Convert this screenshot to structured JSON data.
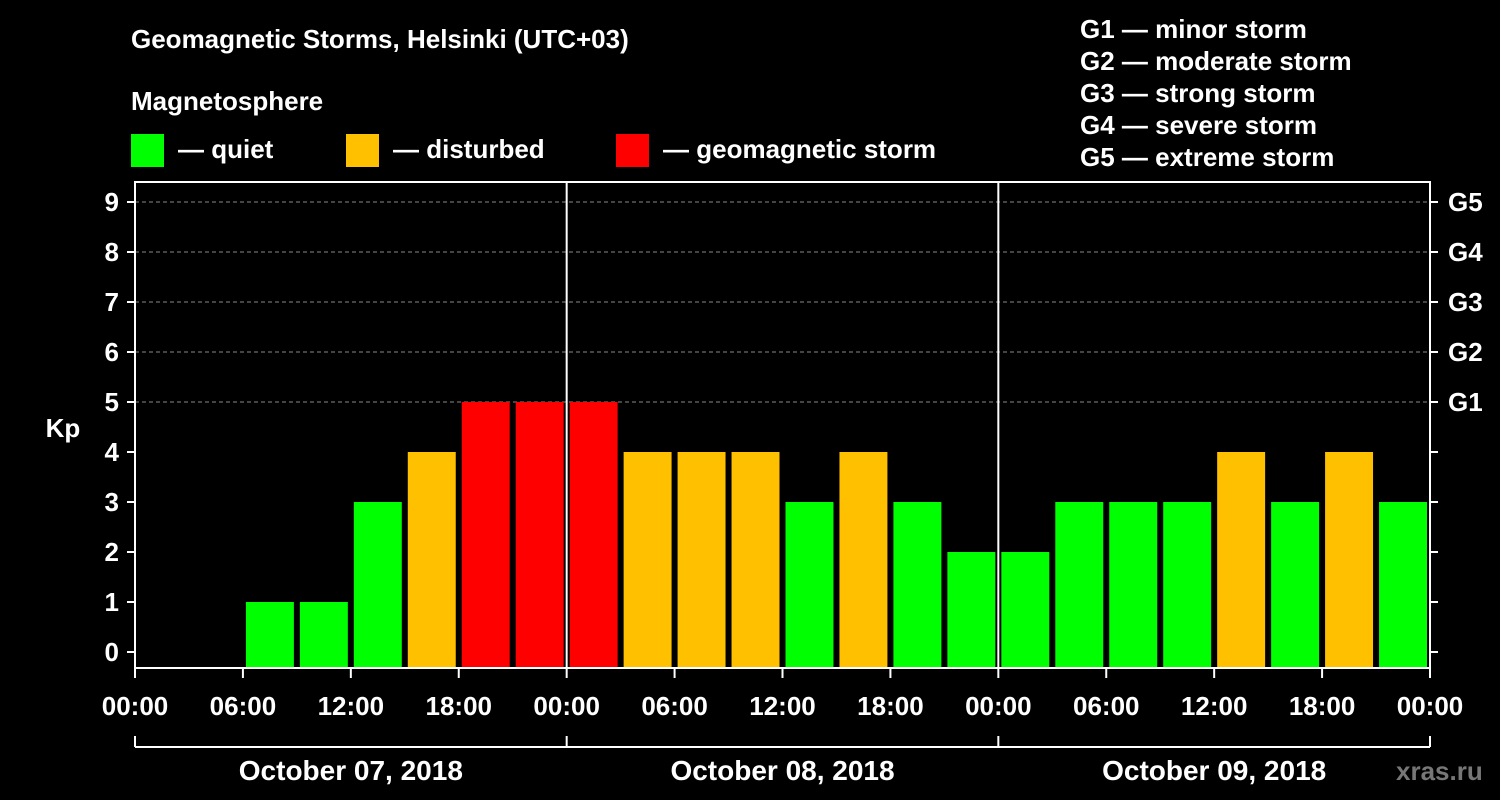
{
  "header": {
    "title": "Geomagnetic Storms, Helsinki (UTC+03)",
    "subtitle": "Magnetosphere",
    "legend": [
      {
        "label": "— quiet",
        "color": "#00ff00"
      },
      {
        "label": "— disturbed",
        "color": "#ffc000"
      },
      {
        "label": "— geomagnetic storm",
        "color": "#ff0000"
      }
    ],
    "scale_legend": [
      "G1 — minor storm",
      "G2 — moderate storm",
      "G3 — strong storm",
      "G4 — severe storm",
      "G5 — extreme storm"
    ]
  },
  "chart_data": {
    "type": "bar",
    "title": "Geomagnetic Storms, Helsinki (UTC+03)",
    "ylabel": "Kp",
    "ylim": [
      0,
      9
    ],
    "yticks": [
      "0",
      "1",
      "2",
      "3",
      "4",
      "5",
      "6",
      "7",
      "8",
      "9"
    ],
    "right_ticks": [
      {
        "kp": 5,
        "label": "G1"
      },
      {
        "kp": 6,
        "label": "G2"
      },
      {
        "kp": 7,
        "label": "G3"
      },
      {
        "kp": 8,
        "label": "G4"
      },
      {
        "kp": 9,
        "label": "G5"
      }
    ],
    "xticks": [
      "00:00",
      "06:00",
      "12:00",
      "18:00",
      "00:00",
      "06:00",
      "12:00",
      "18:00",
      "00:00",
      "06:00",
      "12:00",
      "18:00",
      "00:00"
    ],
    "days": [
      "October 07, 2018",
      "October 08, 2018",
      "October 09, 2018"
    ],
    "interval_hours": 3,
    "values": [
      0,
      0,
      1,
      1,
      3,
      4,
      5,
      5,
      5,
      4,
      4,
      4,
      3,
      4,
      3,
      2,
      2,
      3,
      3,
      3,
      4,
      3,
      4,
      3
    ],
    "colors": {
      "quiet": "#00ff00",
      "disturbed": "#ffc000",
      "storm": "#ff0000"
    }
  },
  "watermark": "xras.ru"
}
